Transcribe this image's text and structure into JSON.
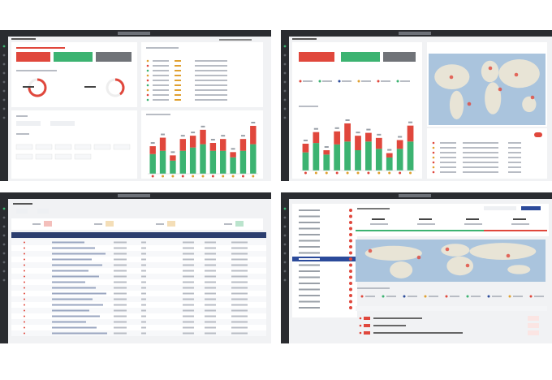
{
  "screens": [
    {
      "bar_chart": {
        "type": "bar",
        "series": [
          {
            "color": "#3cb371",
            "values": [
              30,
              35,
              20,
              35,
              40,
              45,
              35,
              35,
              25,
              35,
              45
            ]
          },
          {
            "color": "#e0473c",
            "values": [
              12,
              20,
              8,
              18,
              18,
              22,
              12,
              18,
              8,
              18,
              28
            ]
          }
        ]
      },
      "gauges": {
        "type": "pie",
        "color": "#e0473c",
        "values": [
          75,
          40
        ]
      }
    },
    {
      "bar_chart": {
        "type": "bar",
        "series": [
          {
            "color": "#3cb371",
            "values": [
              25,
              38,
              22,
              36,
              40,
              28,
              40,
              30,
              18,
              30,
              40
            ]
          },
          {
            "color": "#e0473c",
            "values": [
              12,
              15,
              6,
              18,
              25,
              20,
              12,
              15,
              6,
              12,
              22
            ]
          }
        ]
      }
    }
  ]
}
